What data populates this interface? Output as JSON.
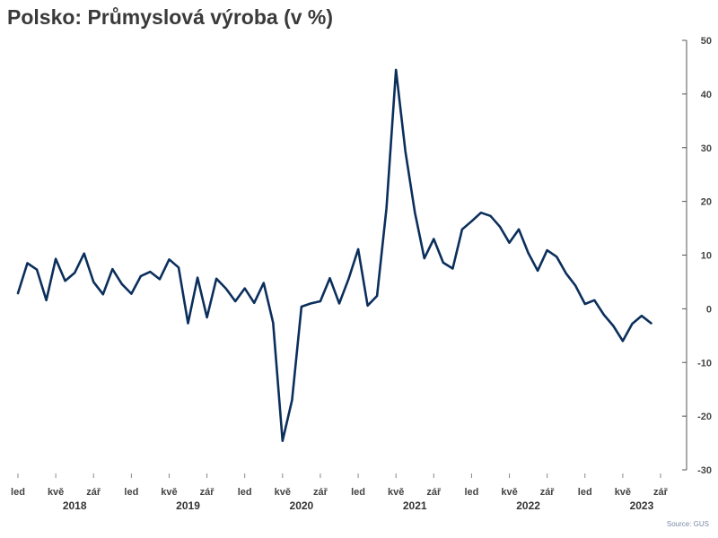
{
  "chart_data": {
    "type": "line",
    "title": "Polsko: Průmyslová výroba (v %)",
    "source": "Source: GUS",
    "xlabel": "",
    "ylabel": "",
    "ylim": [
      -30,
      50
    ],
    "yticks": [
      -30,
      -20,
      -10,
      0,
      10,
      20,
      30,
      40,
      50
    ],
    "y_axis_side": "right",
    "grid": false,
    "line_color": "#0b2f5c",
    "month_ticks": [
      {
        "index": 0,
        "label": "led"
      },
      {
        "index": 4,
        "label": "kvě"
      },
      {
        "index": 8,
        "label": "zář"
      },
      {
        "index": 12,
        "label": "led"
      },
      {
        "index": 16,
        "label": "kvě"
      },
      {
        "index": 20,
        "label": "zář"
      },
      {
        "index": 24,
        "label": "led"
      },
      {
        "index": 28,
        "label": "kvě"
      },
      {
        "index": 32,
        "label": "zář"
      },
      {
        "index": 36,
        "label": "led"
      },
      {
        "index": 40,
        "label": "kvě"
      },
      {
        "index": 44,
        "label": "zář"
      },
      {
        "index": 48,
        "label": "led"
      },
      {
        "index": 52,
        "label": "kvě"
      },
      {
        "index": 56,
        "label": "zář"
      },
      {
        "index": 60,
        "label": "led"
      },
      {
        "index": 64,
        "label": "kvě"
      },
      {
        "index": 68,
        "label": "zář"
      }
    ],
    "years": [
      {
        "label": "2018",
        "center_index": 6
      },
      {
        "label": "2019",
        "center_index": 18
      },
      {
        "label": "2020",
        "center_index": 30
      },
      {
        "label": "2021",
        "center_index": 42
      },
      {
        "label": "2022",
        "center_index": 54
      },
      {
        "label": "2023",
        "center_index": 66
      }
    ],
    "x_domain": [
      0,
      68
    ],
    "series": [
      {
        "values": [
          2.9,
          8.5,
          7.3,
          1.6,
          9.3,
          5.2,
          6.7,
          10.3,
          5.0,
          2.7,
          7.4,
          4.6,
          2.8,
          6.1,
          6.9,
          5.5,
          9.2,
          7.7,
          -2.7,
          5.8,
          -1.6,
          5.6,
          3.8,
          1.4,
          3.8,
          1.1,
          4.8,
          -2.6,
          -24.6,
          -17.0,
          0.4,
          1.0,
          1.4,
          5.7,
          1.0,
          5.6,
          11.1,
          0.6,
          2.4,
          18.7,
          44.5,
          29.3,
          18.0,
          9.4,
          13.0,
          8.6,
          7.5,
          14.8,
          16.3,
          17.9,
          17.3,
          15.3,
          12.3,
          14.8,
          10.4,
          7.1,
          10.9,
          9.7,
          6.6,
          4.3,
          0.9,
          1.6,
          -1.1,
          -3.2,
          -6.0,
          -2.8,
          -1.3,
          -2.7
        ]
      }
    ]
  }
}
